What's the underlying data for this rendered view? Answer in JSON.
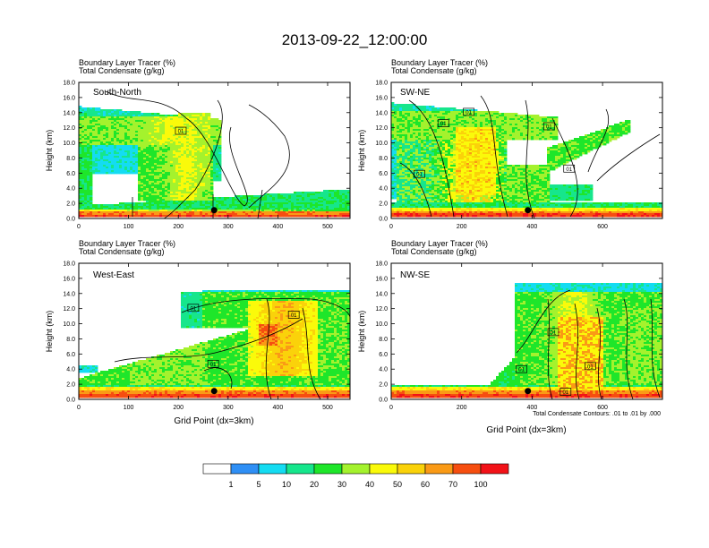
{
  "title": "2013-09-22_12:00:00",
  "colors": {
    "palette": [
      "#ffffff",
      "#2f8ff5",
      "#14dcf2",
      "#16e68c",
      "#1ee62a",
      "#a4f22d",
      "#fafa0a",
      "#fad20a",
      "#fa9a16",
      "#f64e10",
      "#f21218"
    ],
    "contour": "#000000"
  },
  "colorbar": {
    "labels": [
      "1",
      "5",
      "10",
      "20",
      "30",
      "40",
      "50",
      "60",
      "70",
      "100"
    ]
  },
  "footnote": "Total Condensate Contours: .01 to .01 by .000",
  "chart_data": [
    {
      "type": "heatmap",
      "name": "South-North",
      "title_line1": "Boundary Layer Tracer   (%)",
      "title_line2": "Total Condensate   (g/kg)",
      "xlabel": "",
      "ylabel": "Height (km)",
      "xlim": [
        0,
        545
      ],
      "ylim": [
        0,
        18
      ],
      "xticks": [
        "0",
        "100",
        "200",
        "300",
        "400",
        "500"
      ],
      "xtick_values": [
        0,
        100,
        200,
        300,
        400,
        500
      ],
      "yticks": [
        "0.0",
        "2.0",
        "4.0",
        "6.0",
        "8.0",
        "10.0",
        "12.0",
        "14.0",
        "16.0",
        "18.0"
      ],
      "contour_labels": [
        {
          "text": "01",
          "x": 205,
          "y": 11.6
        }
      ],
      "marker": {
        "x": 272,
        "y": 1.1
      }
    },
    {
      "type": "heatmap",
      "name": "SW-NE",
      "title_line1": "Boundary Layer Tracer   (%)",
      "title_line2": "Total Condensate   (g/kg)",
      "xlabel": "",
      "ylabel": "Height (km)",
      "xlim": [
        0,
        770
      ],
      "ylim": [
        0,
        18
      ],
      "xticks": [
        "0",
        "200",
        "400",
        "600"
      ],
      "xtick_values": [
        0,
        200,
        400,
        600
      ],
      "yticks": [
        "0.0",
        "2.0",
        "4.0",
        "6.0",
        "8.0",
        "10.0",
        "12.0",
        "14.0",
        "16.0",
        "18.0"
      ],
      "contour_labels": [
        {
          "text": "01",
          "x": 148,
          "y": 12.6
        },
        {
          "text": "01",
          "x": 220,
          "y": 14.1
        },
        {
          "text": "01",
          "x": 448,
          "y": 12.2
        },
        {
          "text": "01",
          "x": 80,
          "y": 5.9
        },
        {
          "text": "01",
          "x": 505,
          "y": 6.6
        }
      ],
      "marker": {
        "x": 388,
        "y": 1.1
      }
    },
    {
      "type": "heatmap",
      "name": "West-East",
      "title_line1": "Boundary Layer Tracer   (%)",
      "title_line2": "Total Condensate   (g/kg)",
      "xlabel": "Grid Point (dx=3km)",
      "ylabel": "Height (km)",
      "xlim": [
        0,
        545
      ],
      "ylim": [
        0,
        18
      ],
      "xticks": [
        "0",
        "100",
        "200",
        "300",
        "400",
        "500"
      ],
      "xtick_values": [
        0,
        100,
        200,
        300,
        400,
        500
      ],
      "yticks": [
        "0.0",
        "2.0",
        "4.0",
        "6.0",
        "8.0",
        "10.0",
        "12.0",
        "14.0",
        "16.0",
        "18.0"
      ],
      "contour_labels": [
        {
          "text": "01",
          "x": 230,
          "y": 12.1
        },
        {
          "text": "01",
          "x": 432,
          "y": 11.2
        },
        {
          "text": "01",
          "x": 270,
          "y": 4.7
        }
      ],
      "marker": {
        "x": 272,
        "y": 1.1
      }
    },
    {
      "type": "heatmap",
      "name": "NW-SE",
      "title_line1": "Boundary Layer Tracer   (%)",
      "title_line2": "Total Condensate   (g/kg)",
      "xlabel": "Grid Point (dx=3km)",
      "ylabel": "Height (km)",
      "xlim": [
        0,
        770
      ],
      "ylim": [
        0,
        18
      ],
      "xticks": [
        "0",
        "200",
        "400",
        "600"
      ],
      "xtick_values": [
        0,
        200,
        400,
        600
      ],
      "yticks": [
        "0.0",
        "2.0",
        "4.0",
        "6.0",
        "8.0",
        "10.0",
        "12.0",
        "14.0",
        "16.0",
        "18.0"
      ],
      "contour_labels": [
        {
          "text": "01",
          "x": 370,
          "y": 4.0
        },
        {
          "text": "01",
          "x": 460,
          "y": 8.9
        },
        {
          "text": "01",
          "x": 565,
          "y": 4.4
        },
        {
          "text": "01",
          "x": 495,
          "y": 1.0
        }
      ],
      "marker": {
        "x": 388,
        "y": 1.1
      }
    }
  ]
}
